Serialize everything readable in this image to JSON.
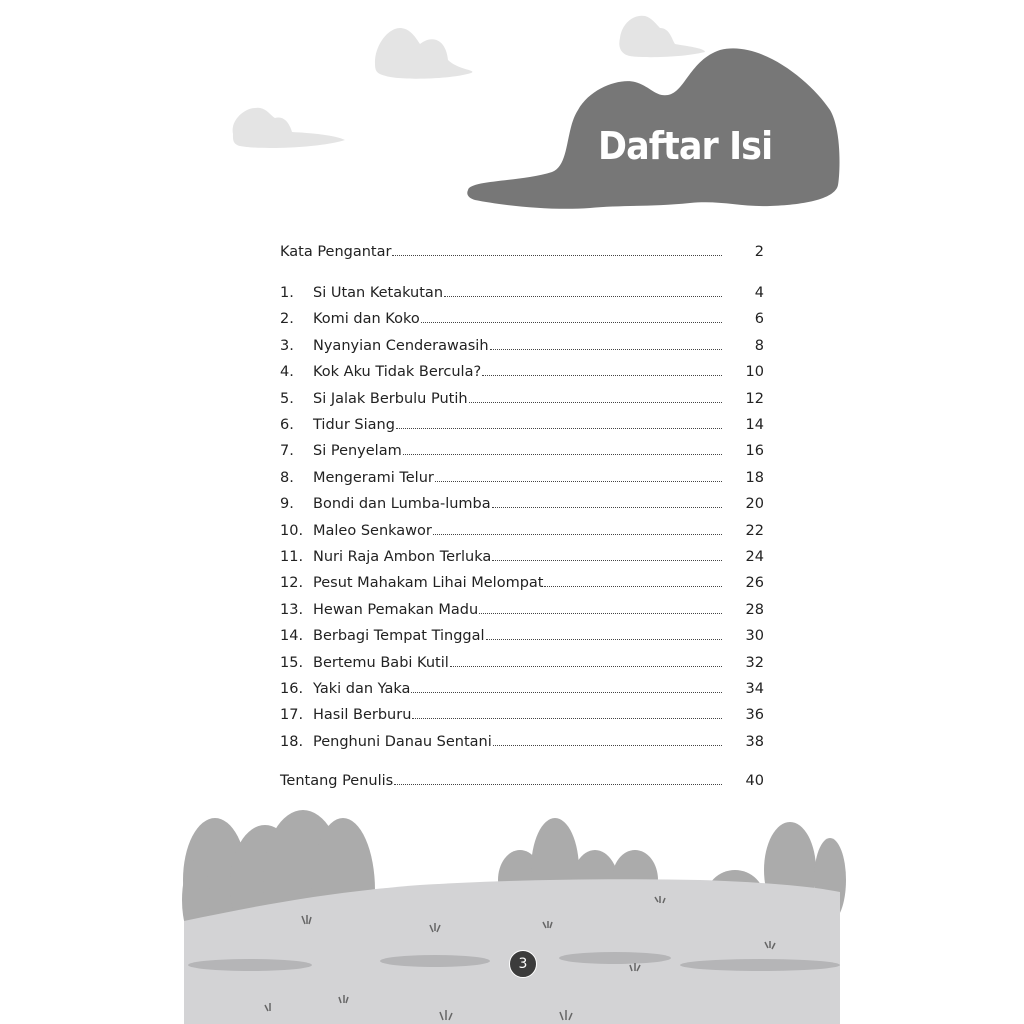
{
  "title": "Daftar Isi",
  "front": {
    "label": "Kata Pengantar",
    "page": "2"
  },
  "entries": [
    {
      "num": "1.",
      "label": "Si Utan Ketakutan",
      "page": "4"
    },
    {
      "num": "2.",
      "label": "Komi dan Koko",
      "page": "6"
    },
    {
      "num": "3.",
      "label": "Nyanyian Cenderawasih",
      "page": "8"
    },
    {
      "num": "4.",
      "label": "Kok Aku Tidak Bercula?",
      "page": "10"
    },
    {
      "num": "5.",
      "label": "Si Jalak Berbulu Putih",
      "page": "12"
    },
    {
      "num": "6.",
      "label": "Tidur Siang",
      "page": "14"
    },
    {
      "num": "7.",
      "label": "Si Penyelam",
      "page": "16"
    },
    {
      "num": "8.",
      "label": "Mengerami Telur",
      "page": "18"
    },
    {
      "num": "9.",
      "label": "Bondi dan Lumba-lumba",
      "page": "20"
    },
    {
      "num": "10.",
      "label": "Maleo Senkawor",
      "page": "22"
    },
    {
      "num": "11.",
      "label": "Nuri Raja Ambon Terluka",
      "page": "24"
    },
    {
      "num": "12.",
      "label": "Pesut Mahakam Lihai Melompat",
      "page": "26"
    },
    {
      "num": "13.",
      "label": "Hewan Pemakan Madu",
      "page": "28"
    },
    {
      "num": "14.",
      "label": "Berbagi Tempat Tinggal",
      "page": "30"
    },
    {
      "num": "15.",
      "label": "Bertemu Babi Kutil",
      "page": "32"
    },
    {
      "num": "16.",
      "label": "Yaki dan Yaka",
      "page": "34"
    },
    {
      "num": "17.",
      "label": "Hasil Berburu",
      "page": "36"
    },
    {
      "num": "18.",
      "label": "Penghuni Danau Sentani",
      "page": "38"
    }
  ],
  "back": {
    "label": "Tentang Penulis",
    "page": "40"
  },
  "page_number": "3",
  "colors": {
    "title_blob": "#777777",
    "cloud": "#e4e4e4",
    "bush": "#ababab",
    "ground": "#d3d3d5",
    "pad": "#b5b5b7"
  }
}
